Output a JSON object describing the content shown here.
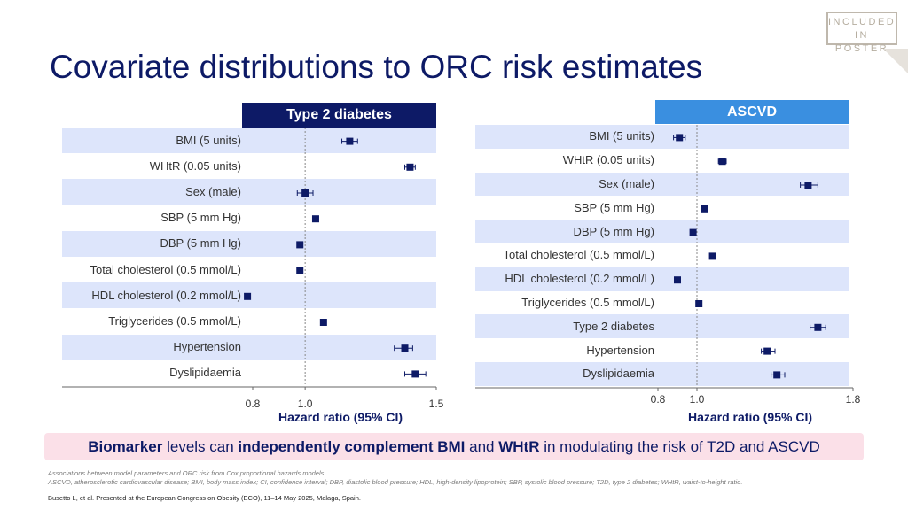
{
  "stamp": {
    "line1": "INCLUDED",
    "line2": "IN POSTER"
  },
  "title": "Covariate distributions to ORC risk estimates",
  "chart_data": [
    {
      "type": "forest",
      "title": "Type 2 diabetes",
      "xlabel": "Hazard ratio (95% CI)",
      "xlim": [
        0.8,
        1.5
      ],
      "ticks": [
        {
          "v": 0.8,
          "label": "0.8"
        },
        {
          "v": 1.0,
          "label": "1.0"
        },
        {
          "v": 1.5,
          "label": "1.5"
        }
      ],
      "reference": 1.0,
      "rows": [
        {
          "label": "BMI (5 units)",
          "hr": 1.17,
          "lo": 1.14,
          "hi": 1.2
        },
        {
          "label": "WHtR (0.05 units)",
          "hr": 1.4,
          "lo": 1.38,
          "hi": 1.42
        },
        {
          "label": "Sex (male)",
          "hr": 1.0,
          "lo": 0.97,
          "hi": 1.03
        },
        {
          "label": "SBP (5 mm Hg)",
          "hr": 1.04,
          "lo": 1.035,
          "hi": 1.045
        },
        {
          "label": "DBP (5 mm Hg)",
          "hr": 0.98,
          "lo": 0.975,
          "hi": 0.985
        },
        {
          "label": "Total cholesterol (0.5 mmol/L)",
          "hr": 0.98,
          "lo": 0.975,
          "hi": 0.985
        },
        {
          "label": "HDL cholesterol (0.2 mmol/L)",
          "hr": 0.78,
          "lo": 0.775,
          "hi": 0.785
        },
        {
          "label": "Triglycerides (0.5 mmol/L)",
          "hr": 1.07,
          "lo": 1.065,
          "hi": 1.075
        },
        {
          "label": "Hypertension",
          "hr": 1.38,
          "lo": 1.34,
          "hi": 1.41
        },
        {
          "label": "Dyslipidaemia",
          "hr": 1.42,
          "lo": 1.38,
          "hi": 1.46
        }
      ]
    },
    {
      "type": "forest",
      "title": "ASCVD",
      "xlabel": "Hazard ratio (95% CI)",
      "xlim": [
        0.8,
        1.8
      ],
      "ticks": [
        {
          "v": 0.8,
          "label": "0.8"
        },
        {
          "v": 1.0,
          "label": "1.0"
        },
        {
          "v": 1.8,
          "label": "1.8"
        }
      ],
      "reference": 1.0,
      "rows": [
        {
          "label": "BMI (5 units)",
          "hr": 0.91,
          "lo": 0.88,
          "hi": 0.94
        },
        {
          "label": "WHtR (0.05 units)",
          "hr": 1.13,
          "lo": 1.11,
          "hi": 1.15
        },
        {
          "label": "Sex (male)",
          "hr": 1.57,
          "lo": 1.53,
          "hi": 1.62
        },
        {
          "label": "SBP (5 mm Hg)",
          "hr": 1.04,
          "lo": 1.035,
          "hi": 1.045
        },
        {
          "label": "DBP (5 mm Hg)",
          "hr": 0.98,
          "lo": 0.975,
          "hi": 0.985
        },
        {
          "label": "Total cholesterol (0.5 mmol/L)",
          "hr": 1.08,
          "lo": 1.075,
          "hi": 1.085
        },
        {
          "label": "HDL cholesterol (0.2 mmol/L)",
          "hr": 0.9,
          "lo": 0.895,
          "hi": 0.905
        },
        {
          "label": "Triglycerides (0.5 mmol/L)",
          "hr": 1.01,
          "lo": 1.005,
          "hi": 1.015
        },
        {
          "label": "Type 2 diabetes",
          "hr": 1.62,
          "lo": 1.58,
          "hi": 1.66
        },
        {
          "label": "Hypertension",
          "hr": 1.36,
          "lo": 1.33,
          "hi": 1.4
        },
        {
          "label": "Dyslipidaemia",
          "hr": 1.41,
          "lo": 1.38,
          "hi": 1.45
        }
      ]
    }
  ],
  "banner": {
    "p1": "Biomarker",
    "p2": " levels can ",
    "p3": "independently complement BMI",
    "p4": " and ",
    "p5": "WHtR",
    "p6": " in modulating the risk of T2D and ASCVD"
  },
  "footnotes": {
    "line1": "Associations between model parameters and ORC risk from Cox proportional hazards models.",
    "line2": "ASCVD, atherosclerotic cardiovascular disease; BMI, body mass index; CI, confidence interval;  DBP, diastolic blood pressure; HDL, high-density lipoprotein; SBP, systolic blood pressure; T2D, type 2 diabetes; WHtR, waist-to-height ratio.",
    "citation": "Busetto L, et al. Presented at the European Congress on Obesity (ECO), 11–14 May 2025, Malaga, Spain."
  },
  "colors": {
    "navy": "#0d1a66",
    "blue": "#3a8fe0",
    "band": "#dde5fb",
    "pink": "#fbe0e8"
  }
}
